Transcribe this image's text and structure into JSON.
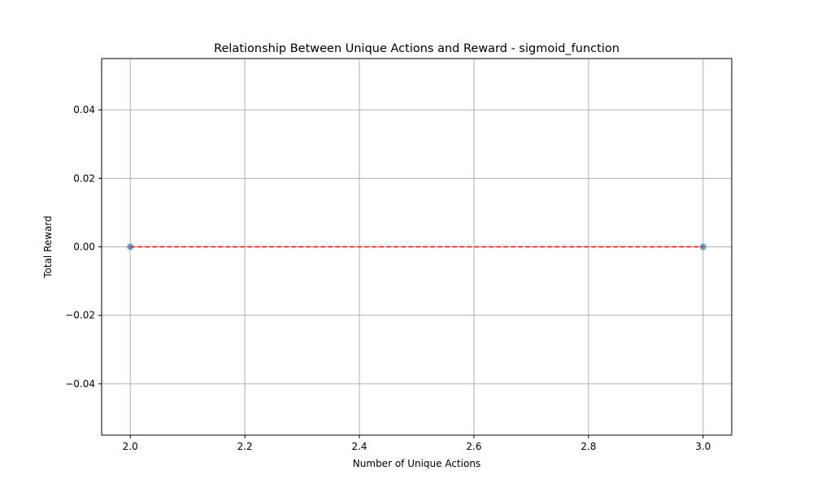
{
  "chart_data": {
    "type": "scatter",
    "title": "Relationship Between Unique Actions and Reward - sigmoid_function",
    "xlabel": "Number of Unique Actions",
    "ylabel": "Total Reward",
    "xlim": [
      1.95,
      3.05
    ],
    "ylim": [
      -0.055,
      0.055
    ],
    "x_ticks": [
      2.0,
      2.2,
      2.4,
      2.6,
      2.8,
      3.0
    ],
    "x_tick_labels": [
      "2.0",
      "2.2",
      "2.4",
      "2.6",
      "2.8",
      "3.0"
    ],
    "y_ticks": [
      -0.04,
      -0.02,
      0.0,
      0.02,
      0.04
    ],
    "y_tick_labels": [
      "−0.04",
      "−0.02",
      "0.00",
      "0.02",
      "0.04"
    ],
    "grid": true,
    "points": [
      {
        "x": 2.0,
        "y": 0.0
      },
      {
        "x": 3.0,
        "y": 0.0
      }
    ],
    "trend_line": {
      "x": [
        2.0,
        3.0
      ],
      "y": [
        0.0,
        0.0
      ],
      "style": "dashed"
    },
    "colors": {
      "points": "#1f77b4",
      "trend_line": "#ff0000",
      "grid": "#b0b0b0"
    }
  }
}
